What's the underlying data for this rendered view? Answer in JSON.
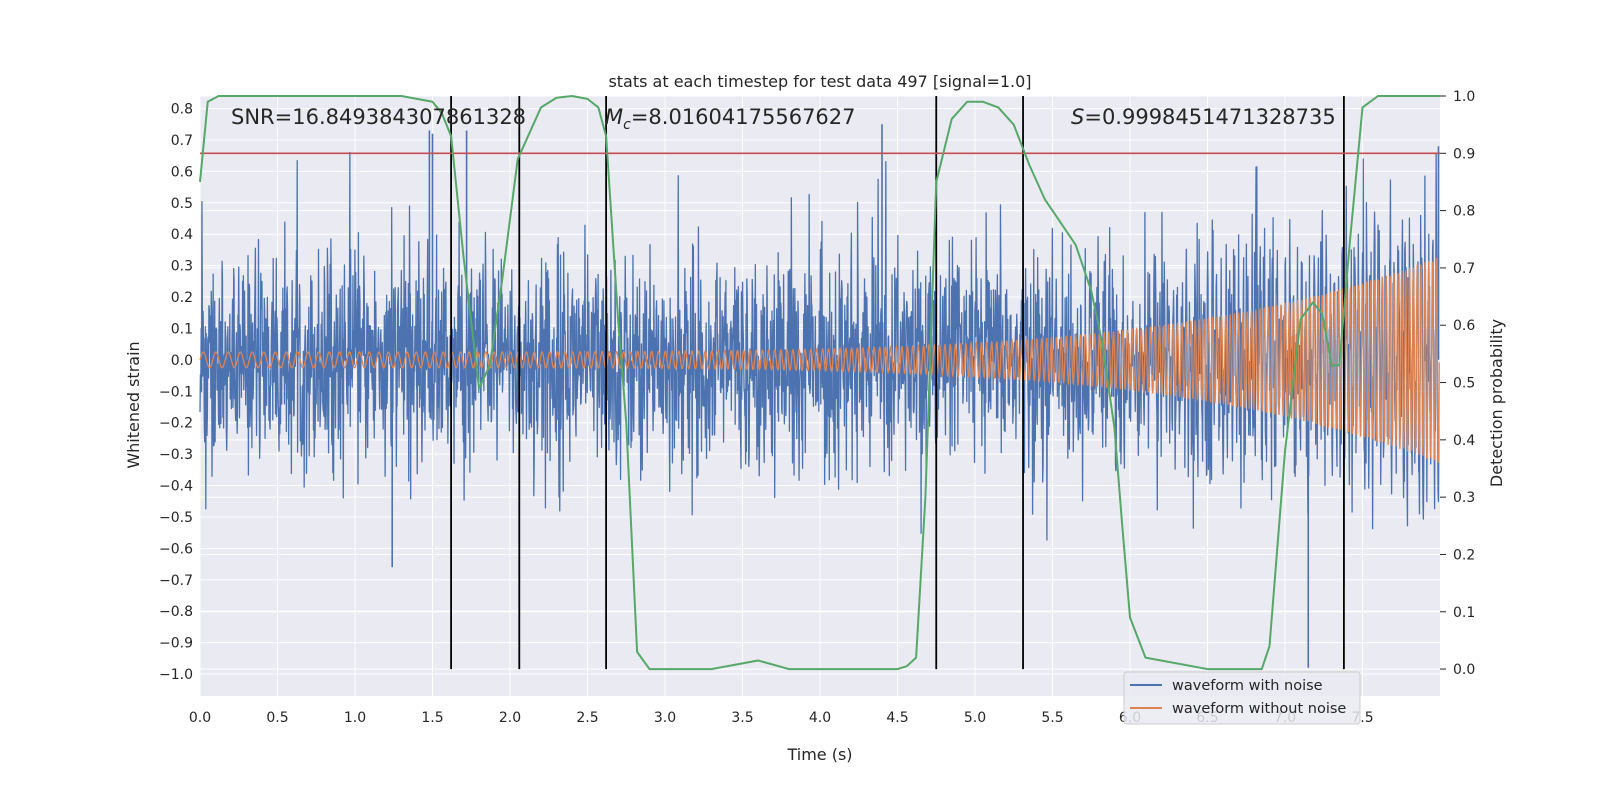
{
  "chart_data": {
    "type": "line",
    "title": "stats at each timestep for test data 497 [signal=1.0]",
    "xlabel": "Time (s)",
    "ylabel": "Whitened strain",
    "y2label": "Detection probability",
    "xlim": [
      0.0,
      8.0
    ],
    "ylim": [
      -1.07,
      0.84
    ],
    "y2lim": [
      -0.047,
      1.0
    ],
    "grid": true,
    "legend_position": "lower-right",
    "x_ticks": [
      "0.0",
      "0.5",
      "1.0",
      "1.5",
      "2.0",
      "2.5",
      "3.0",
      "3.5",
      "4.0",
      "4.5",
      "5.0",
      "5.5",
      "6.0",
      "6.5",
      "7.0",
      "7.5"
    ],
    "y_ticks": [
      "0.8",
      "0.7",
      "0.6",
      "0.5",
      "0.4",
      "0.3",
      "0.2",
      "0.1",
      "0.0",
      "−0.1",
      "−0.2",
      "−0.3",
      "−0.4",
      "−0.5",
      "−0.6",
      "−0.7",
      "−0.8",
      "−0.9",
      "−1.0"
    ],
    "y_tick_values": [
      0.8,
      0.7,
      0.6,
      0.5,
      0.4,
      0.3,
      0.2,
      0.1,
      0.0,
      -0.1,
      -0.2,
      -0.3,
      -0.4,
      -0.5,
      -0.6,
      -0.7,
      -0.8,
      -0.9,
      -1.0
    ],
    "y2_ticks": [
      "1.0",
      "0.9",
      "0.8",
      "0.7",
      "0.6",
      "0.5",
      "0.4",
      "0.3",
      "0.2",
      "0.1",
      "0.0"
    ],
    "y2_tick_values": [
      1.0,
      0.9,
      0.8,
      0.7,
      0.6,
      0.5,
      0.4,
      0.3,
      0.2,
      0.1,
      0.0
    ],
    "annotations": {
      "snr": "SNR=16.849384307861328",
      "mc_symbol": "M",
      "mc_subscript": "c",
      "mc_value": "=8.01604175567627",
      "s_symbol": "S",
      "s_value": "=0.9998451471328735"
    },
    "threshold": {
      "value": 0.9,
      "axis": "right"
    },
    "vertical_lines": [
      1.62,
      2.06,
      2.62,
      4.75,
      5.31,
      7.38
    ],
    "series": [
      {
        "name": "waveform with noise",
        "color": "#4c72b0",
        "axis": "left",
        "description": "whitened strain with noise, approx amplitude 0.3 with spikes up to 0.75 and down to -1.0",
        "spikes": [
          {
            "x": 1.48,
            "y": 0.73
          },
          {
            "x": 1.72,
            "y": 0.73
          },
          {
            "x": 1.5,
            "y": 0.72
          },
          {
            "x": 4.4,
            "y": 0.75
          },
          {
            "x": 7.15,
            "y": -0.98
          },
          {
            "x": 7.38,
            "y": -0.72
          },
          {
            "x": 1.24,
            "y": -0.66
          },
          {
            "x": 7.99,
            "y": 0.68
          }
        ]
      },
      {
        "name": "waveform without noise",
        "color": "#dd8452",
        "axis": "left",
        "description": "chirp signal, amplitude growing from 0.025 at t=0 to 0.33 at t=8"
      },
      {
        "name": "detection probability",
        "color": "#55a868",
        "axis": "right",
        "x": [
          0.0,
          0.05,
          0.12,
          0.3,
          0.6,
          1.0,
          1.3,
          1.5,
          1.56,
          1.62,
          1.7,
          1.8,
          1.87,
          1.95,
          2.05,
          2.2,
          2.3,
          2.4,
          2.5,
          2.57,
          2.62,
          2.7,
          2.75,
          2.82,
          2.9,
          3.0,
          3.3,
          3.5,
          3.6,
          3.8,
          4.0,
          4.3,
          4.5,
          4.56,
          4.62,
          4.68,
          4.75,
          4.85,
          4.95,
          5.05,
          5.15,
          5.25,
          5.35,
          5.45,
          5.55,
          5.65,
          5.75,
          5.82,
          5.9,
          5.95,
          6.0,
          6.1,
          6.5,
          6.85,
          6.9,
          7.0,
          7.1,
          7.18,
          7.24,
          7.3,
          7.35,
          7.42,
          7.5,
          7.6,
          8.0
        ],
        "y": [
          0.85,
          0.99,
          1.0,
          1.0,
          1.0,
          1.0,
          1.0,
          0.99,
          0.97,
          0.93,
          0.72,
          0.49,
          0.53,
          0.68,
          0.89,
          0.98,
          0.997,
          1.0,
          0.995,
          0.98,
          0.93,
          0.6,
          0.43,
          0.03,
          0.0,
          0.0,
          0.0,
          0.01,
          0.015,
          0.0,
          0.0,
          0.0,
          0.0,
          0.005,
          0.02,
          0.3,
          0.85,
          0.96,
          0.99,
          0.99,
          0.98,
          0.95,
          0.88,
          0.82,
          0.78,
          0.74,
          0.66,
          0.57,
          0.42,
          0.25,
          0.09,
          0.02,
          0.0,
          0.0,
          0.04,
          0.38,
          0.61,
          0.64,
          0.62,
          0.53,
          0.53,
          0.75,
          0.98,
          1.0,
          1.0
        ]
      }
    ]
  }
}
